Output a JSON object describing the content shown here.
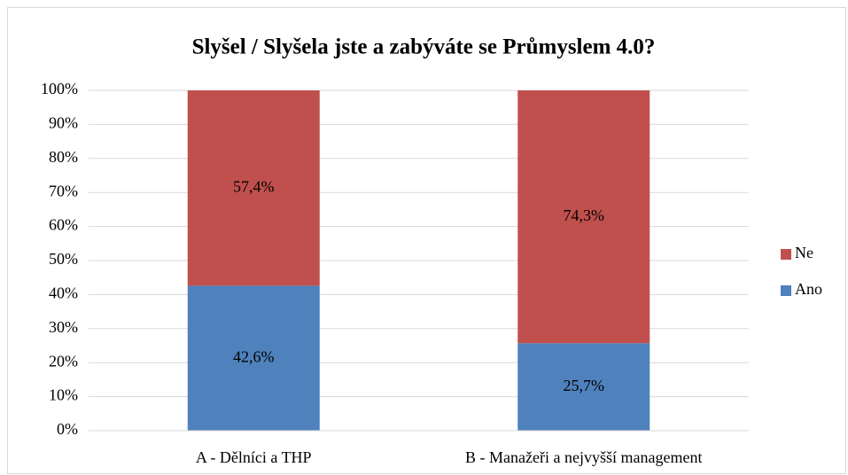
{
  "chart_data": {
    "type": "stacked_bar",
    "title": "Slyšel / Slyšela jste a zabýváte se Průmyslem 4.0?",
    "categories": [
      "A - Dělníci a THP",
      "B - Manažeři a nejvyšší management"
    ],
    "series": [
      {
        "name": "Ano",
        "color": "#4f81bd",
        "values": [
          42.6,
          25.7
        ],
        "value_labels": [
          "42,6%",
          "25,7%"
        ]
      },
      {
        "name": "Ne",
        "color": "#c0504d",
        "values": [
          57.4,
          74.3
        ],
        "value_labels": [
          "57,4%",
          "74,3%"
        ]
      }
    ],
    "ylim": [
      0,
      100
    ],
    "yticks": [
      {
        "value": 0,
        "label": "0%"
      },
      {
        "value": 10,
        "label": "10%"
      },
      {
        "value": 20,
        "label": "20%"
      },
      {
        "value": 30,
        "label": "30%"
      },
      {
        "value": 40,
        "label": "40%"
      },
      {
        "value": 50,
        "label": "50%"
      },
      {
        "value": 60,
        "label": "60%"
      },
      {
        "value": 70,
        "label": "70%"
      },
      {
        "value": 80,
        "label": "80%"
      },
      {
        "value": 90,
        "label": "90%"
      },
      {
        "value": 100,
        "label": "100%"
      }
    ],
    "grid": true,
    "legend": "right"
  }
}
